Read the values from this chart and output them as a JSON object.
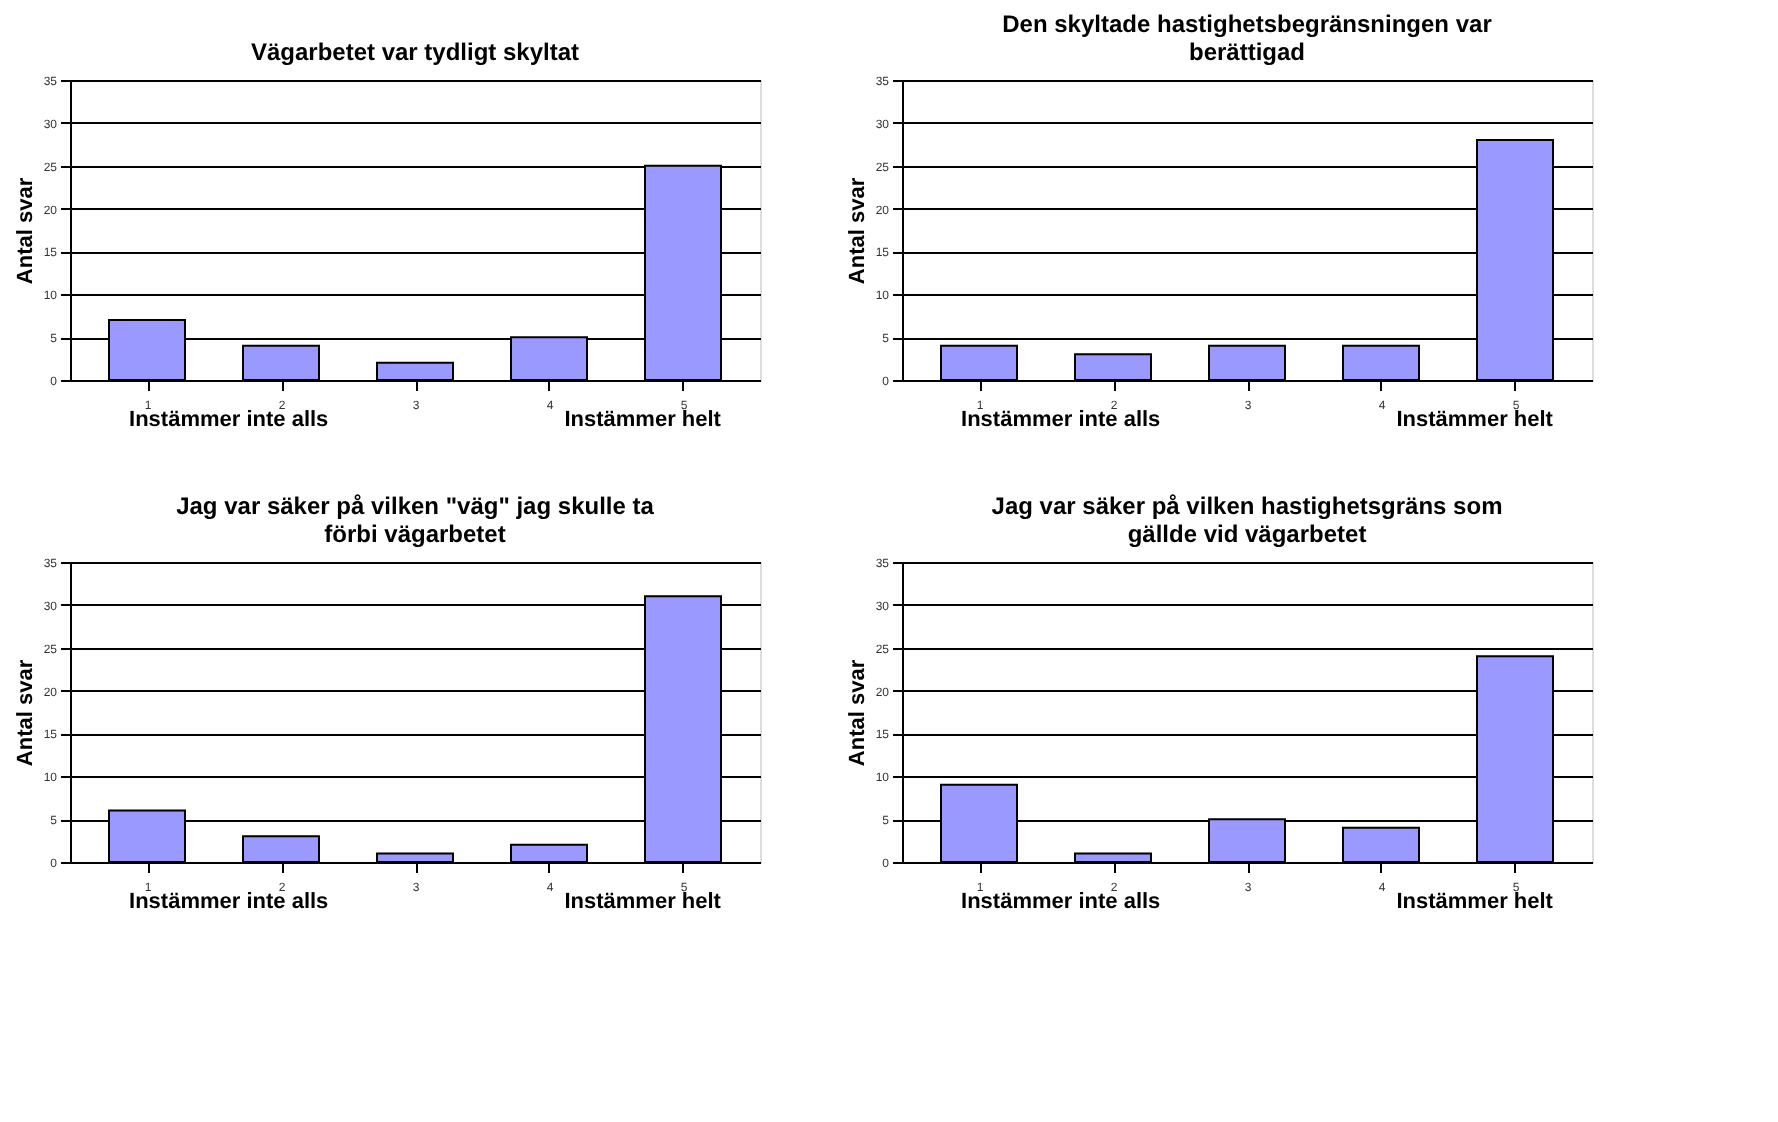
{
  "chart_data": [
    {
      "type": "bar",
      "title": "Vägarbetet var tydligt skyltat",
      "ylabel": "Antal svar",
      "categories": [
        "1",
        "2",
        "3",
        "4",
        "5"
      ],
      "series": [
        {
          "color": "#9999ff",
          "values": [
            7,
            4,
            2,
            5,
            25
          ]
        }
      ],
      "ylim": [
        0,
        35
      ],
      "yticks": [
        0,
        5,
        10,
        15,
        20,
        25,
        30,
        35
      ],
      "grid": "y",
      "annotations": [
        "Instämmer inte alls",
        "Instämmer helt"
      ]
    },
    {
      "type": "bar",
      "title": "Den skyltade hastighetsbegränsningen var berättigad",
      "ylabel": "Antal svar",
      "categories": [
        "1",
        "2",
        "3",
        "4",
        "5"
      ],
      "series": [
        {
          "color": "#9999ff",
          "values": [
            4,
            3,
            4,
            4,
            28
          ]
        }
      ],
      "ylim": [
        0,
        35
      ],
      "yticks": [
        0,
        5,
        10,
        15,
        20,
        25,
        30,
        35
      ],
      "grid": "y",
      "annotations": [
        "Instämmer inte alls",
        "Instämmer helt"
      ]
    },
    {
      "type": "bar",
      "title": "Jag var säker på vilken \"väg\" jag skulle ta förbi vägarbetet",
      "ylabel": "Antal svar",
      "categories": [
        "1",
        "2",
        "3",
        "4",
        "5"
      ],
      "series": [
        {
          "color": "#9999ff",
          "values": [
            6,
            3,
            1,
            2,
            31
          ]
        }
      ],
      "ylim": [
        0,
        35
      ],
      "yticks": [
        0,
        5,
        10,
        15,
        20,
        25,
        30,
        35
      ],
      "grid": "y",
      "annotations": [
        "Instämmer inte alls",
        "Instämmer helt"
      ]
    },
    {
      "type": "bar",
      "title": "Jag var säker på vilken hastighetsgräns som gällde vid vägarbetet",
      "ylabel": "Antal svar",
      "categories": [
        "1",
        "2",
        "3",
        "4",
        "5"
      ],
      "series": [
        {
          "color": "#9999ff",
          "values": [
            9,
            1,
            5,
            4,
            24
          ]
        }
      ],
      "ylim": [
        0,
        35
      ],
      "yticks": [
        0,
        5,
        10,
        15,
        20,
        25,
        30,
        35
      ],
      "grid": "y",
      "annotations": [
        "Instämmer inte alls",
        "Instämmer helt"
      ]
    }
  ]
}
